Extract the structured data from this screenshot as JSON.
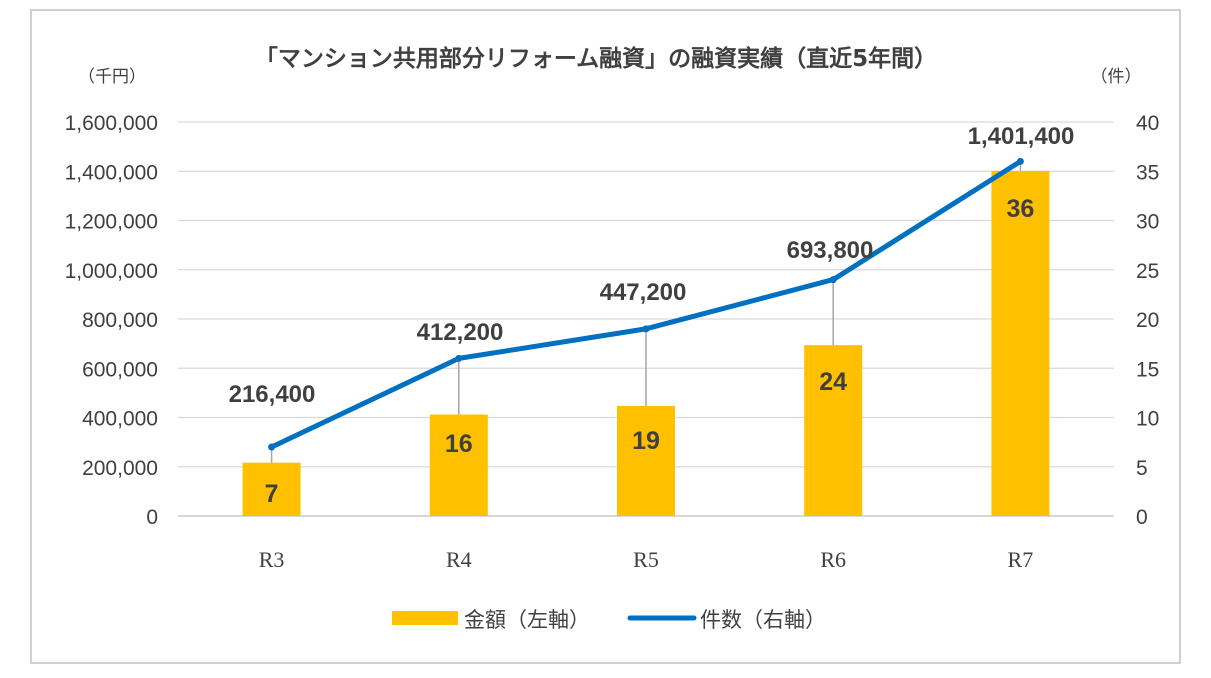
{
  "chart_data": {
    "type": "bar+line",
    "title": "「マンション共用部分リフォーム融資」の融資実績（直近5年間）",
    "y_left_unit": "（千円）",
    "y_right_unit": "（件）",
    "categories": [
      "R3",
      "R4",
      "R5",
      "R6",
      "R7"
    ],
    "series": [
      {
        "name": "金額（左軸）",
        "type": "bar",
        "axis": "left",
        "color": "#FFC000",
        "values": [
          216400,
          412200,
          447200,
          693800,
          1401400
        ],
        "value_labels": [
          "216,400",
          "412,200",
          "447,200",
          "693,800",
          "1,401,400"
        ]
      },
      {
        "name": "件数（右軸）",
        "type": "line",
        "axis": "right",
        "color": "#0070C0",
        "values": [
          7,
          16,
          19,
          24,
          36
        ],
        "value_labels": [
          "7",
          "16",
          "19",
          "24",
          "36"
        ]
      }
    ],
    "ylim_left": [
      0,
      1600000
    ],
    "ylim_right": [
      0,
      40
    ],
    "y_left_ticks": [
      "0",
      "200,000",
      "400,000",
      "600,000",
      "800,000",
      "1,000,000",
      "1,200,000",
      "1,400,000",
      "1,600,000"
    ],
    "y_right_ticks": [
      "0",
      "5",
      "10",
      "15",
      "20",
      "25",
      "30",
      "35",
      "40"
    ],
    "grid": true,
    "legend_position": "bottom"
  }
}
